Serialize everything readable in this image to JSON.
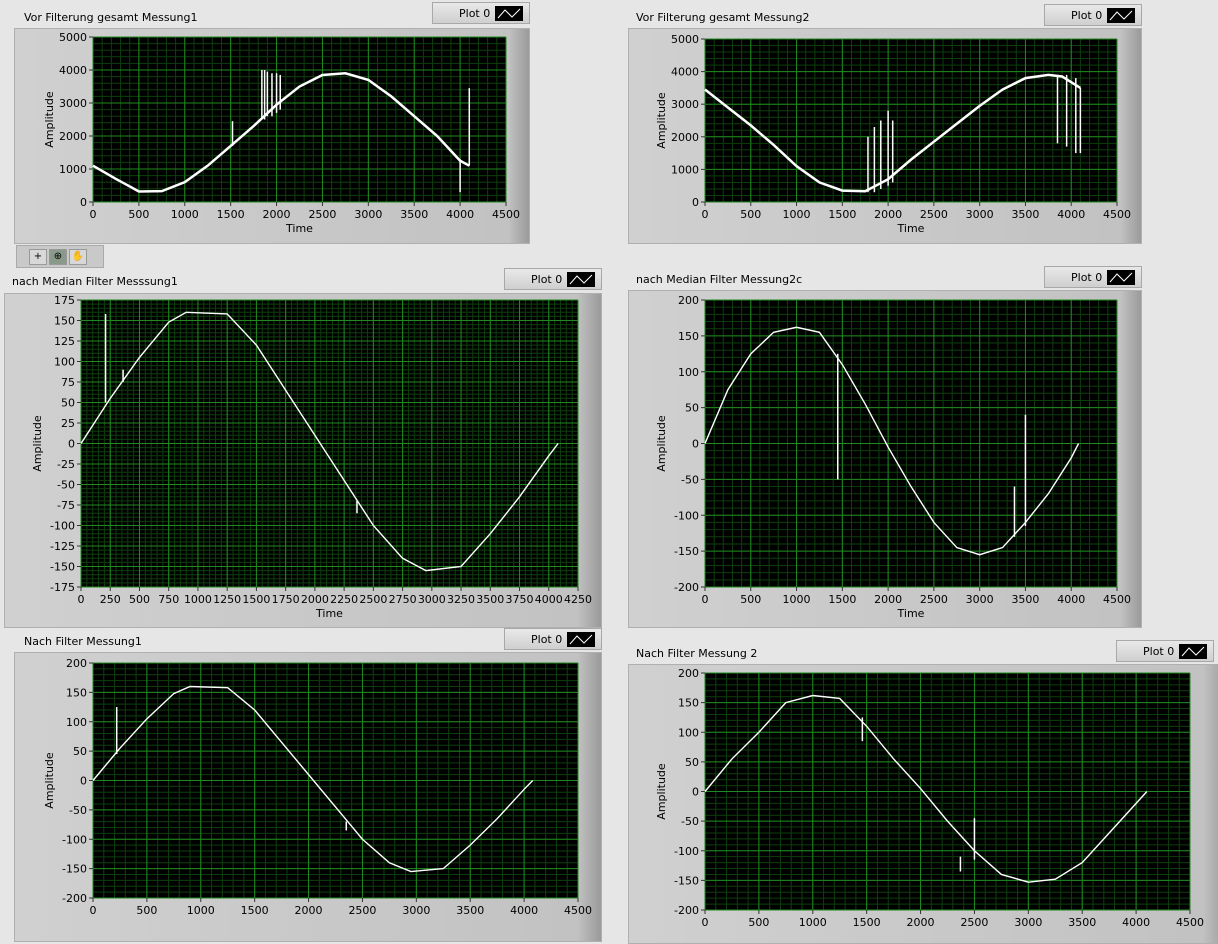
{
  "colors": {
    "plot_bg": "#000000",
    "grid_major": "#1f8a1f",
    "grid_minor": "#0d3f0d",
    "trace": "#ffffff"
  },
  "toolbar": {
    "tools": [
      {
        "icon": "cursor-move-icon"
      },
      {
        "icon": "zoom-icon",
        "active": true
      },
      {
        "icon": "pan-hand-icon"
      }
    ]
  },
  "chart_data": [
    {
      "id": "g1",
      "type": "line",
      "title": "Vor Filterung gesamt Messung1",
      "legend": "Plot 0",
      "xlabel": "Time",
      "ylabel": "Amplitude",
      "xlim": [
        0,
        4500
      ],
      "ylim": [
        0,
        5000
      ],
      "xticks": [
        0,
        500,
        1000,
        1500,
        2000,
        2500,
        3000,
        3500,
        4000,
        4500
      ],
      "yticks": [
        0,
        1000,
        2000,
        3000,
        4000,
        5000
      ],
      "grid": true,
      "points": [
        [
          0,
          1100
        ],
        [
          250,
          700
        ],
        [
          500,
          320
        ],
        [
          750,
          330
        ],
        [
          1000,
          600
        ],
        [
          1250,
          1100
        ],
        [
          1500,
          1700
        ],
        [
          1750,
          2300
        ],
        [
          2000,
          2950
        ],
        [
          2250,
          3500
        ],
        [
          2500,
          3850
        ],
        [
          2750,
          3900
        ],
        [
          3000,
          3700
        ],
        [
          3250,
          3200
        ],
        [
          3500,
          2600
        ],
        [
          3750,
          2000
        ],
        [
          4000,
          1250
        ],
        [
          4100,
          1100
        ]
      ],
      "spikes": [
        [
          1520,
          1700,
          2450
        ],
        [
          1840,
          2500,
          4000
        ],
        [
          1870,
          2500,
          4000
        ],
        [
          1900,
          2600,
          3950
        ],
        [
          1950,
          2600,
          3900
        ],
        [
          2000,
          2700,
          3900
        ],
        [
          2040,
          2800,
          3850
        ],
        [
          4000,
          300,
          1300
        ],
        [
          4100,
          1100,
          3450
        ]
      ]
    },
    {
      "id": "g2",
      "type": "line",
      "title": "Vor Filterung gesamt Messung2",
      "legend": "Plot 0",
      "xlabel": "Time",
      "ylabel": "Amplitude",
      "xlim": [
        0,
        4500
      ],
      "ylim": [
        0,
        5000
      ],
      "xticks": [
        0,
        500,
        1000,
        1500,
        2000,
        2500,
        3000,
        3500,
        4000,
        4500
      ],
      "yticks": [
        0,
        1000,
        2000,
        3000,
        4000,
        5000
      ],
      "grid": true,
      "points": [
        [
          0,
          3450
        ],
        [
          250,
          2900
        ],
        [
          500,
          2350
        ],
        [
          750,
          1750
        ],
        [
          1000,
          1100
        ],
        [
          1250,
          600
        ],
        [
          1500,
          350
        ],
        [
          1750,
          330
        ],
        [
          2000,
          700
        ],
        [
          2250,
          1300
        ],
        [
          2500,
          1850
        ],
        [
          2750,
          2400
        ],
        [
          3000,
          2950
        ],
        [
          3250,
          3450
        ],
        [
          3500,
          3800
        ],
        [
          3750,
          3900
        ],
        [
          3900,
          3850
        ],
        [
          4100,
          3500
        ]
      ],
      "spikes": [
        [
          1780,
          300,
          2000
        ],
        [
          1850,
          300,
          2300
        ],
        [
          1920,
          400,
          2500
        ],
        [
          2000,
          500,
          2800
        ],
        [
          2050,
          600,
          2500
        ],
        [
          3850,
          1800,
          3900
        ],
        [
          3950,
          1700,
          3900
        ],
        [
          4050,
          1500,
          3800
        ],
        [
          4100,
          1500,
          3500
        ]
      ]
    },
    {
      "id": "g3",
      "type": "line",
      "title": "nach Median Filter Messsung1",
      "legend": "Plot 0",
      "xlabel": "Time",
      "ylabel": "Amplitude",
      "xlim": [
        0,
        4250
      ],
      "ylim": [
        -175,
        175
      ],
      "xticks": [
        0,
        250,
        500,
        750,
        1000,
        1250,
        1500,
        1750,
        2000,
        2250,
        2500,
        2750,
        3000,
        3250,
        3500,
        3750,
        4000,
        4250
      ],
      "yticks": [
        -175,
        -150,
        -125,
        -100,
        -75,
        -50,
        -25,
        0,
        25,
        50,
        75,
        100,
        125,
        150,
        175
      ],
      "grid": true,
      "points": [
        [
          0,
          0
        ],
        [
          250,
          55
        ],
        [
          500,
          105
        ],
        [
          750,
          148
        ],
        [
          900,
          160
        ],
        [
          1250,
          158
        ],
        [
          1500,
          120
        ],
        [
          1750,
          65
        ],
        [
          2000,
          10
        ],
        [
          2250,
          -45
        ],
        [
          2500,
          -100
        ],
        [
          2750,
          -140
        ],
        [
          2950,
          -155
        ],
        [
          3250,
          -150
        ],
        [
          3500,
          -110
        ],
        [
          3750,
          -65
        ],
        [
          4000,
          -15
        ],
        [
          4080,
          0
        ]
      ],
      "spikes": [
        [
          210,
          50,
          158
        ],
        [
          360,
          75,
          90
        ],
        [
          2360,
          -85,
          -70
        ]
      ]
    },
    {
      "id": "g4",
      "type": "line",
      "title": "nach Median Filter Messung2c",
      "legend": "Plot 0",
      "xlabel": "Time",
      "ylabel": "Amplitude",
      "xlim": [
        0,
        4500
      ],
      "ylim": [
        -200,
        200
      ],
      "xticks": [
        0,
        500,
        1000,
        1500,
        2000,
        2500,
        3000,
        3500,
        4000,
        4500
      ],
      "yticks": [
        -200,
        -150,
        -100,
        -50,
        0,
        50,
        100,
        150,
        200
      ],
      "grid": true,
      "points": [
        [
          0,
          0
        ],
        [
          250,
          75
        ],
        [
          500,
          125
        ],
        [
          750,
          155
        ],
        [
          1000,
          162
        ],
        [
          1250,
          155
        ],
        [
          1500,
          110
        ],
        [
          1750,
          55
        ],
        [
          2000,
          -5
        ],
        [
          2250,
          -60
        ],
        [
          2500,
          -110
        ],
        [
          2750,
          -145
        ],
        [
          3000,
          -155
        ],
        [
          3250,
          -145
        ],
        [
          3500,
          -110
        ],
        [
          3750,
          -70
        ],
        [
          4000,
          -20
        ],
        [
          4080,
          0
        ]
      ],
      "spikes": [
        [
          1450,
          -50,
          125
        ],
        [
          3380,
          -130,
          -60
        ],
        [
          3500,
          -115,
          40
        ]
      ]
    },
    {
      "id": "g5",
      "type": "line",
      "title": "Nach Filter Messung1",
      "legend": "Plot 0",
      "xlabel": "",
      "ylabel": "Amplitude",
      "xlim": [
        0,
        4500
      ],
      "ylim": [
        -200,
        200
      ],
      "xticks": [
        0,
        500,
        1000,
        1500,
        2000,
        2500,
        3000,
        3500,
        4000,
        4500
      ],
      "yticks": [
        -200,
        -150,
        -100,
        -50,
        0,
        50,
        100,
        150,
        200
      ],
      "grid": true,
      "points": [
        [
          0,
          0
        ],
        [
          250,
          55
        ],
        [
          500,
          105
        ],
        [
          750,
          148
        ],
        [
          900,
          160
        ],
        [
          1250,
          158
        ],
        [
          1500,
          120
        ],
        [
          1750,
          65
        ],
        [
          2000,
          10
        ],
        [
          2250,
          -45
        ],
        [
          2500,
          -100
        ],
        [
          2750,
          -140
        ],
        [
          2950,
          -155
        ],
        [
          3250,
          -150
        ],
        [
          3500,
          -110
        ],
        [
          3750,
          -65
        ],
        [
          4000,
          -15
        ],
        [
          4080,
          0
        ]
      ],
      "spikes": [
        [
          220,
          45,
          125
        ],
        [
          2350,
          -85,
          -70
        ]
      ]
    },
    {
      "id": "g6",
      "type": "line",
      "title": "Nach Filter Messung 2",
      "legend": "Plot 0",
      "xlabel": "",
      "ylabel": "Amplitude",
      "xlim": [
        0,
        4500
      ],
      "ylim": [
        -200,
        200
      ],
      "xticks": [
        0,
        500,
        1000,
        1500,
        2000,
        2500,
        3000,
        3500,
        4000,
        4500
      ],
      "yticks": [
        -200,
        -150,
        -100,
        -50,
        0,
        50,
        100,
        150,
        200
      ],
      "grid": true,
      "points": [
        [
          0,
          0
        ],
        [
          250,
          55
        ],
        [
          500,
          100
        ],
        [
          750,
          150
        ],
        [
          1000,
          162
        ],
        [
          1250,
          157
        ],
        [
          1500,
          110
        ],
        [
          1750,
          55
        ],
        [
          2000,
          5
        ],
        [
          2250,
          -50
        ],
        [
          2500,
          -100
        ],
        [
          2750,
          -140
        ],
        [
          3000,
          -153
        ],
        [
          3250,
          -148
        ],
        [
          3500,
          -120
        ],
        [
          3750,
          -70
        ],
        [
          4000,
          -20
        ],
        [
          4100,
          0
        ]
      ],
      "spikes": [
        [
          1460,
          85,
          125
        ],
        [
          2370,
          -135,
          -110
        ],
        [
          2500,
          -115,
          -45
        ]
      ]
    }
  ]
}
